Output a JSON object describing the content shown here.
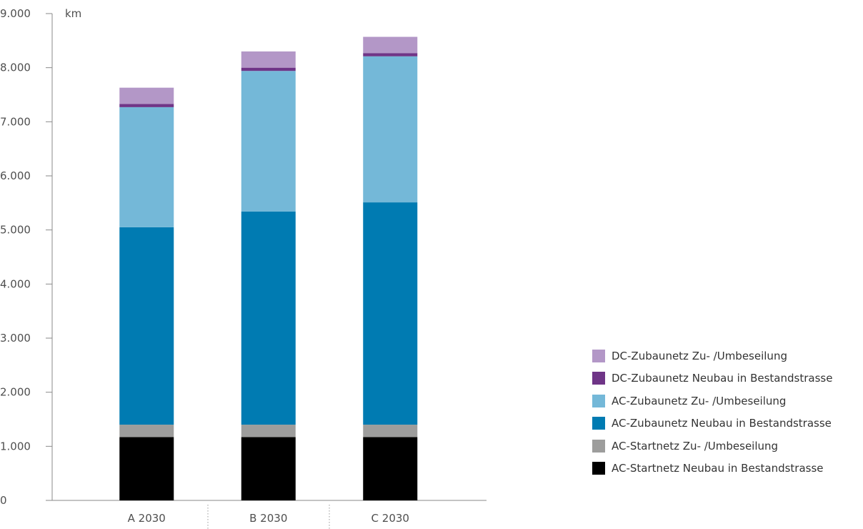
{
  "chart_data": {
    "type": "bar",
    "stacked": true,
    "categories": [
      "A 2030",
      "B 2030",
      "C 2030"
    ],
    "ylabel": "km",
    "ylim": [
      0,
      9000
    ],
    "yticks": [
      {
        "value": 0,
        "label": "0"
      },
      {
        "value": 1000,
        "label": "1.000"
      },
      {
        "value": 2000,
        "label": "2.000"
      },
      {
        "value": 3000,
        "label": "3.000"
      },
      {
        "value": 4000,
        "label": "4.000"
      },
      {
        "value": 5000,
        "label": "5.000"
      },
      {
        "value": 6000,
        "label": "6.000"
      },
      {
        "value": 7000,
        "label": "7.000"
      },
      {
        "value": 8000,
        "label": "8.000"
      },
      {
        "value": 9000,
        "label": "9.000"
      }
    ],
    "grid": false,
    "legend_position": "right",
    "series": [
      {
        "name": "AC-Startnetz Neubau in Bestandstrasse",
        "color": "#000000",
        "values": [
          1170,
          1170,
          1170
        ]
      },
      {
        "name": "AC-Startnetz Zu- /Umbeseilung",
        "color": "#9d9d9c",
        "values": [
          230,
          230,
          230
        ]
      },
      {
        "name": "AC-Zubaunetz Neubau in Bestandstrasse",
        "color": "#007bb2",
        "values": [
          3650,
          3940,
          4110
        ]
      },
      {
        "name": "AC-Zubaunetz Zu- /Umbeseilung",
        "color": "#74b8d8",
        "values": [
          2220,
          2600,
          2700
        ]
      },
      {
        "name": "DC-Zubaunetz Neubau in Bestandstrasse",
        "color": "#6f3587",
        "values": [
          60,
          60,
          60
        ]
      },
      {
        "name": "DC-Zubaunetz Zu- /Umbeseilung",
        "color": "#b397c7",
        "values": [
          300,
          300,
          300
        ]
      }
    ]
  },
  "colors": {
    "axis": "#8a8a8a",
    "separator": "#9a9a9a"
  }
}
